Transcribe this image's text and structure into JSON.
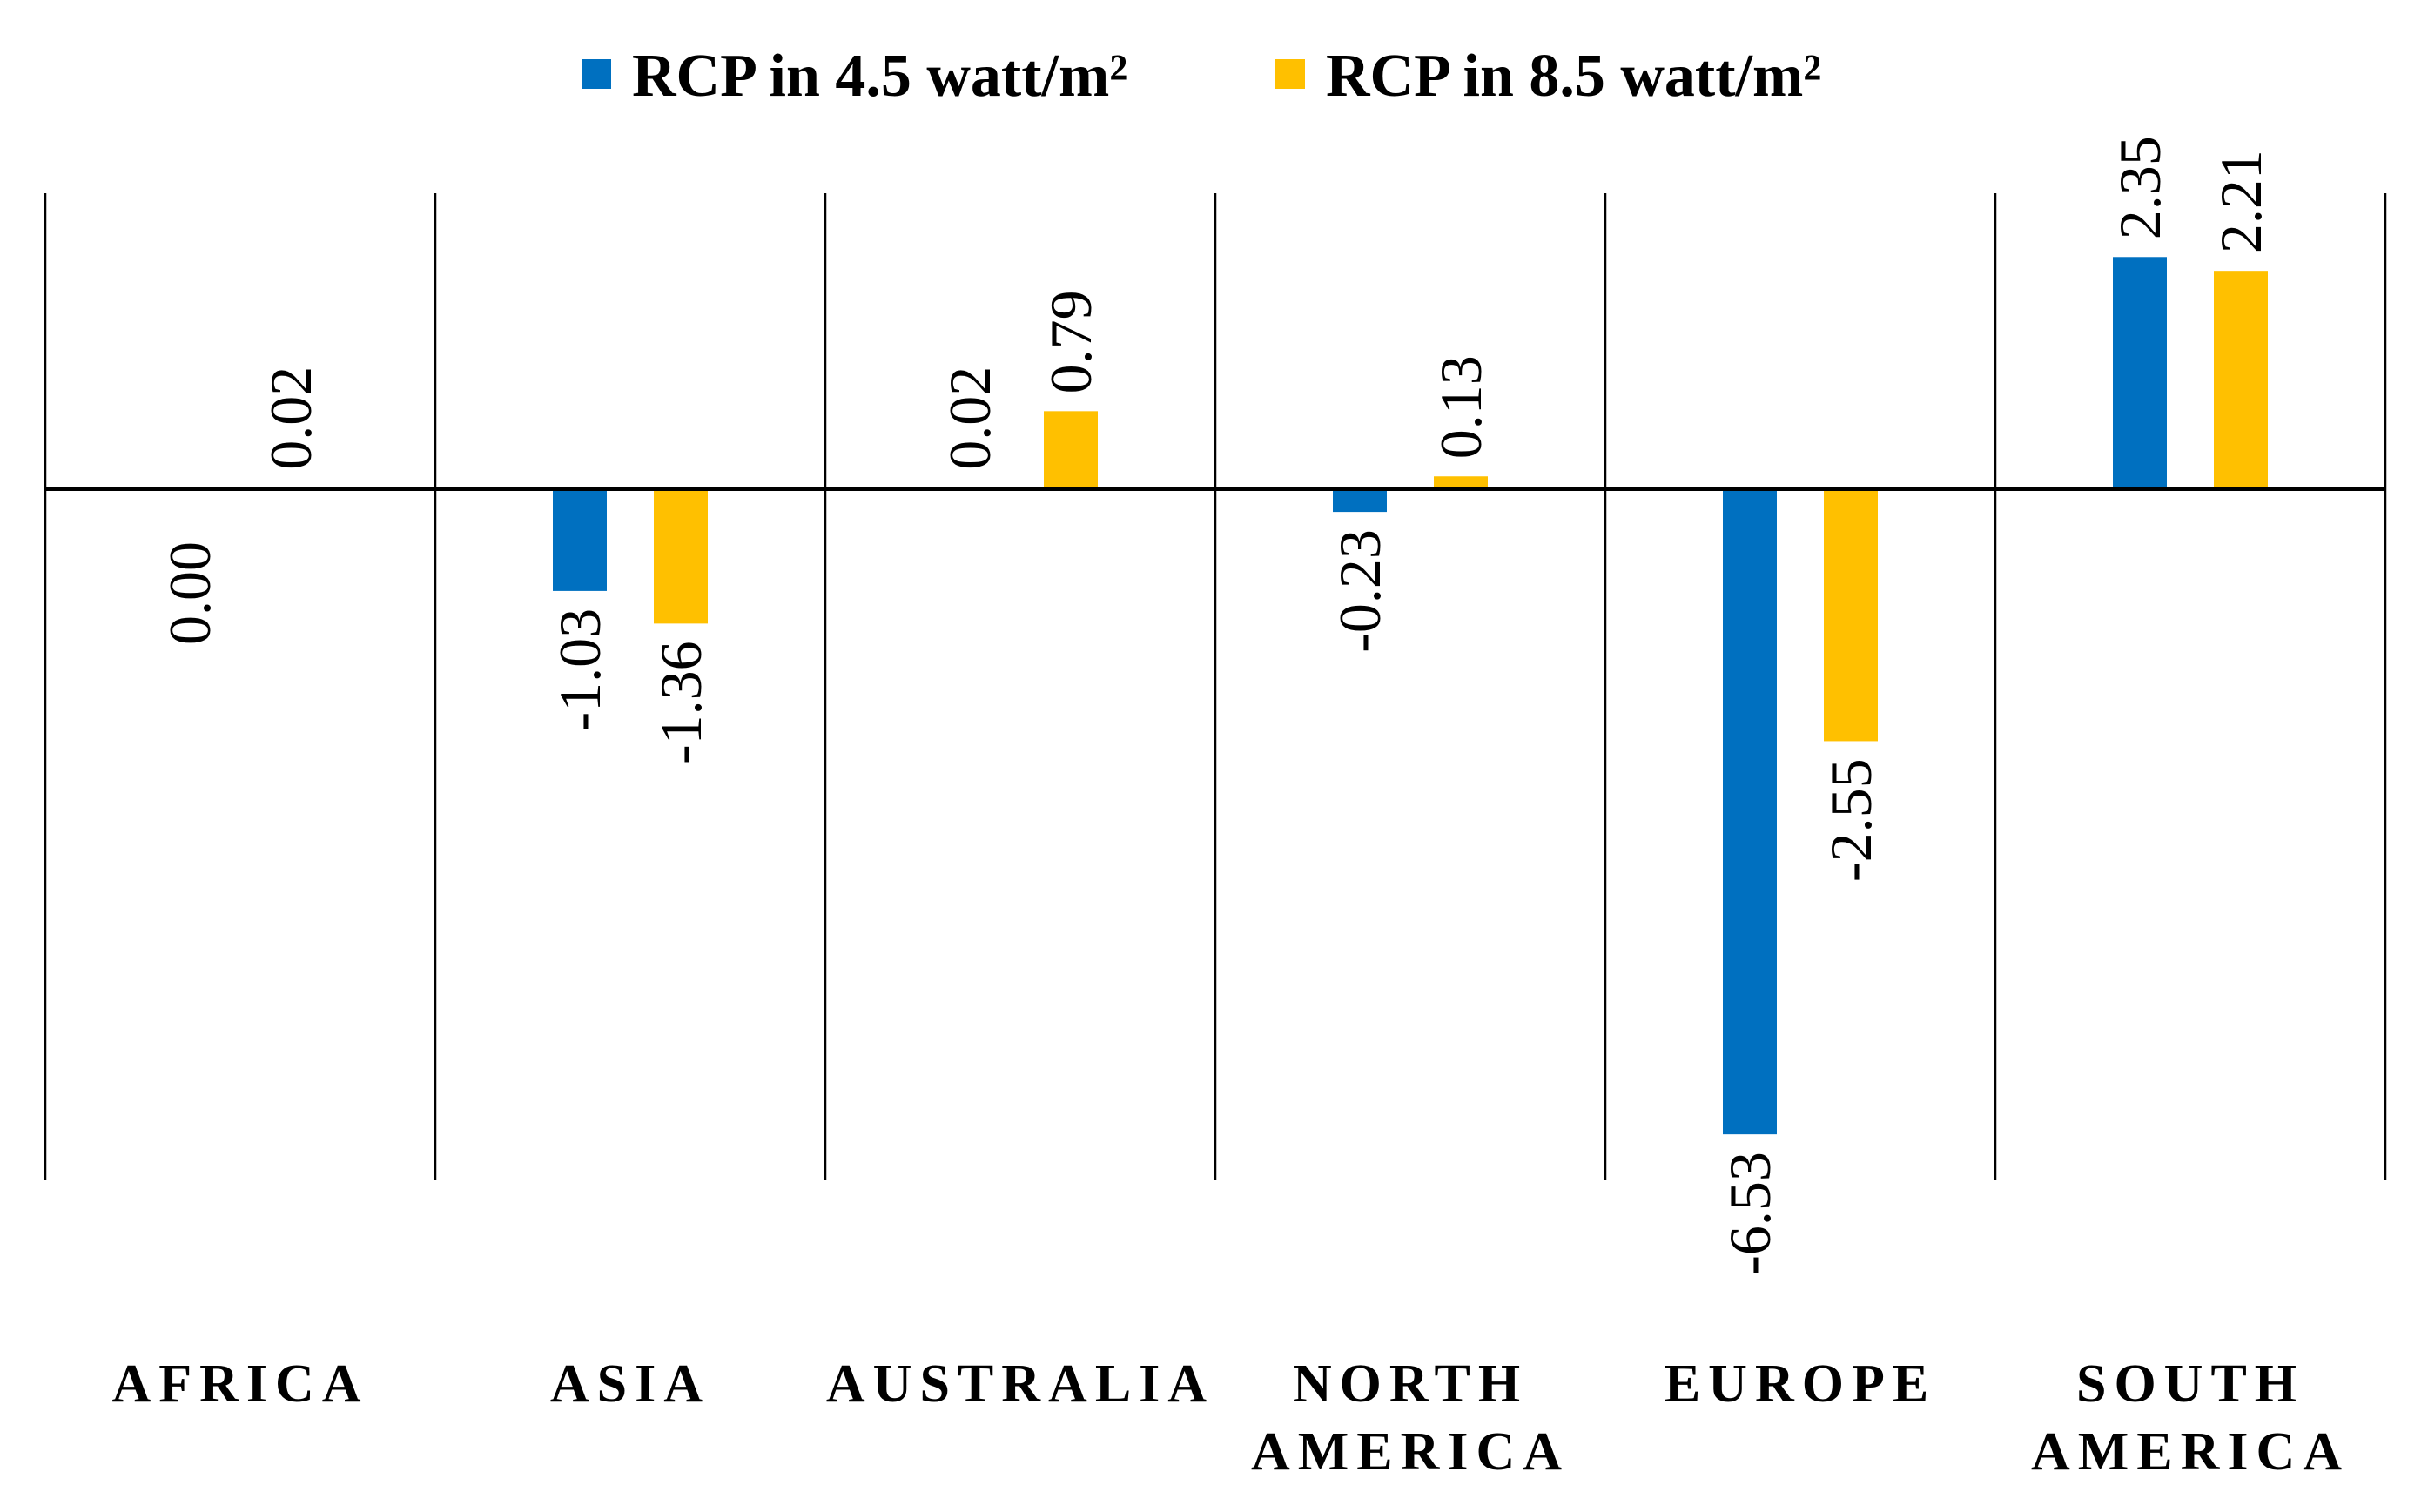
{
  "chart_data": {
    "type": "bar",
    "title": "",
    "xlabel": "",
    "ylabel": "",
    "categories": [
      [
        "AFRICA"
      ],
      [
        "ASIA"
      ],
      [
        "AUSTRALIA"
      ],
      [
        "NORTH",
        "AMERICA"
      ],
      [
        "EUROPE"
      ],
      [
        "SOUTH",
        "AMERICA"
      ]
    ],
    "series": [
      {
        "name": "RCP in 4.5 watt/m²",
        "color": "#0070C0",
        "values": [
          0.0,
          -1.03,
          0.02,
          -0.23,
          -6.53,
          2.35
        ],
        "labels": [
          "0.00",
          "-1.03",
          "0.02",
          "-0.23",
          "-6.53",
          "2.35"
        ]
      },
      {
        "name": "RCP in 8.5 watt/m²",
        "color": "#FFC000",
        "values": [
          0.02,
          -1.36,
          0.79,
          0.13,
          -2.55,
          2.21
        ],
        "labels": [
          "0.02",
          "-1.36",
          "0.79",
          "0.13",
          "-2.55",
          "2.21"
        ]
      }
    ],
    "ylim": [
      -7.1,
      3.0
    ],
    "grid": false,
    "category_separators": true,
    "legend_position": "top-center",
    "data_labels": "rotated-vertical"
  }
}
